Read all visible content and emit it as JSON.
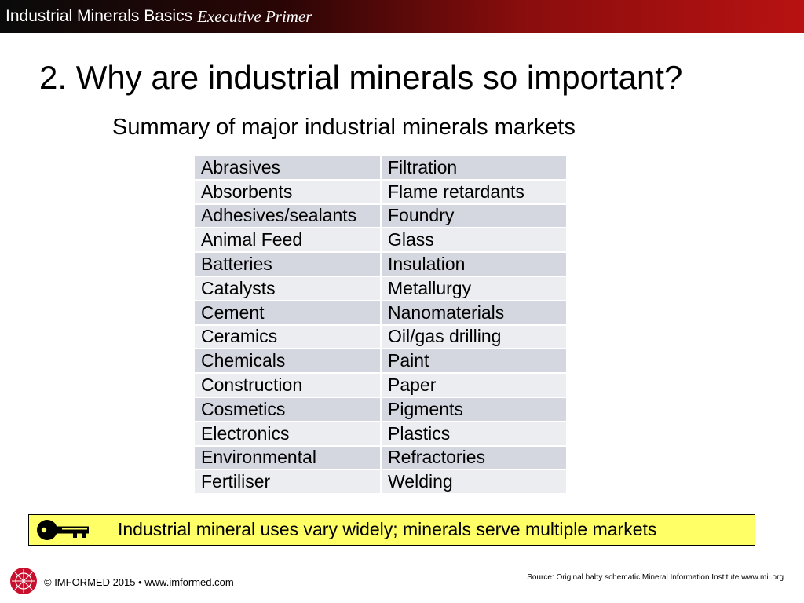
{
  "header": {
    "brand": "Industrial Minerals Basics",
    "subbrand": "Executive Primer"
  },
  "slide": {
    "title": "2. Why are industrial minerals so important?",
    "subtitle": "Summary of major industrial minerals markets"
  },
  "markets_table": {
    "rows": [
      [
        "Abrasives",
        "Filtration"
      ],
      [
        "Absorbents",
        "Flame retardants"
      ],
      [
        "Adhesives/sealants",
        "Foundry"
      ],
      [
        "Animal Feed",
        "Glass"
      ],
      [
        "Batteries",
        "Insulation"
      ],
      [
        "Catalysts",
        "Metallurgy"
      ],
      [
        "Cement",
        "Nanomaterials"
      ],
      [
        "Ceramics",
        "Oil/gas drilling"
      ],
      [
        "Chemicals",
        "Paint"
      ],
      [
        "Construction",
        "Paper"
      ],
      [
        "Cosmetics",
        "Pigments"
      ],
      [
        "Electronics",
        "Plastics"
      ],
      [
        "Environmental",
        "Refractories"
      ],
      [
        "Fertiliser",
        "Welding"
      ]
    ]
  },
  "takeaway": {
    "icon": "key-icon",
    "text": "Industrial mineral uses vary widely; minerals serve multiple markets"
  },
  "footer": {
    "logo_icon": "imformed-logo-icon",
    "copyright": "© IMFORMED 2015 • www.imformed.com",
    "source": "Source: Original baby schematic Mineral Information Institute www.mii.org"
  },
  "colors": {
    "header_dark": "#0a0a0a",
    "header_red": "#b81212",
    "table_row_dark": "#d4d7df",
    "table_row_light": "#ebedf1",
    "takeaway_background": "#ffff66",
    "logo_red": "#c8102e"
  }
}
